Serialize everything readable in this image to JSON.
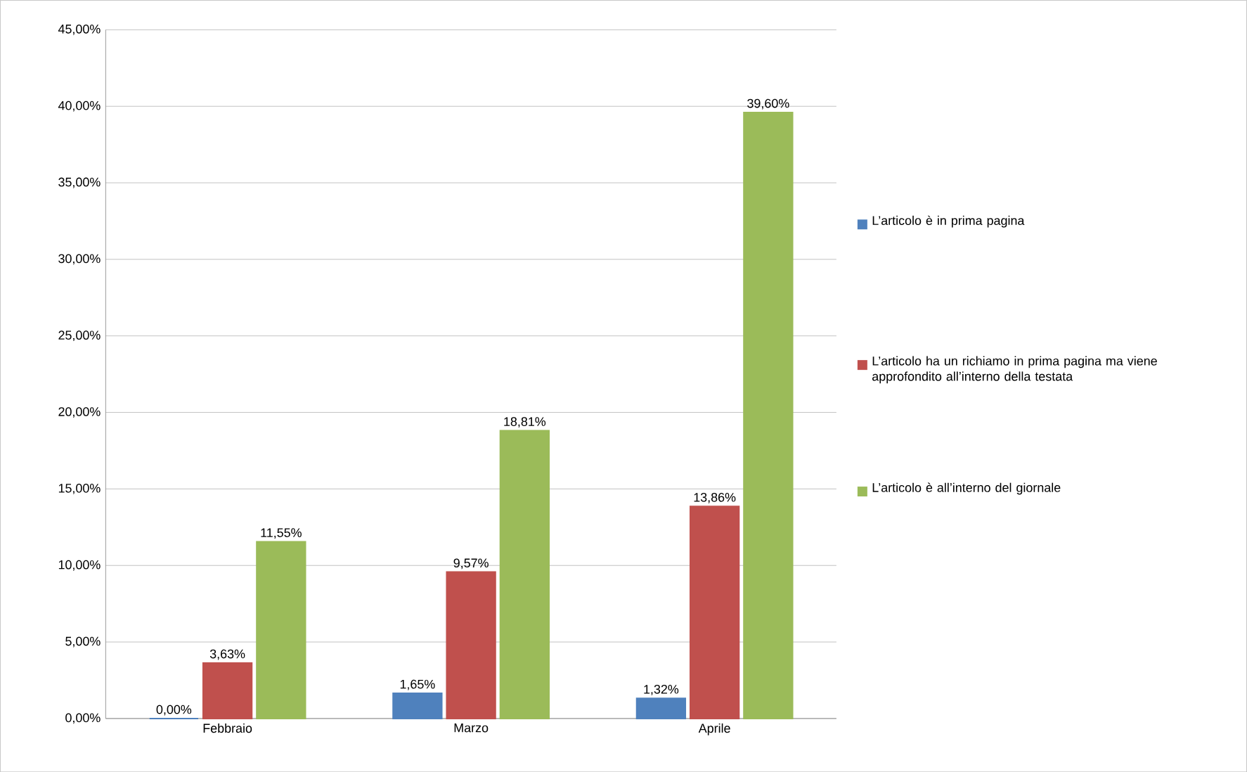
{
  "chart_data": {
    "type": "bar",
    "categories": [
      "Febbraio",
      "Marzo",
      "Aprile"
    ],
    "series": [
      {
        "name": "L’articolo è in prima pagina",
        "color": "#4f81bd",
        "values": [
          0.0,
          1.65,
          1.32
        ],
        "value_labels": [
          "0,00%",
          "1,65%",
          "1,32%"
        ]
      },
      {
        "name": "L’articolo ha un richiamo in prima pagina ma viene approfondito all’interno della testata",
        "color": "#c0504d",
        "values": [
          3.63,
          9.57,
          13.86
        ],
        "value_labels": [
          "3,63%",
          "9,57%",
          "13,86%"
        ]
      },
      {
        "name": "L’articolo è all’interno del giornale",
        "color": "#9bbb59",
        "values": [
          11.55,
          18.81,
          39.6
        ],
        "value_labels": [
          "11,55%",
          "18,81%",
          "39,60%"
        ]
      }
    ],
    "ylim": [
      0,
      45
    ],
    "yticks": [
      {
        "value": 0,
        "label": "0,00%"
      },
      {
        "value": 5,
        "label": "5,00%"
      },
      {
        "value": 10,
        "label": "10,00%"
      },
      {
        "value": 15,
        "label": "15,00%"
      },
      {
        "value": 20,
        "label": "20,00%"
      },
      {
        "value": 25,
        "label": "25,00%"
      },
      {
        "value": 30,
        "label": "30,00%"
      },
      {
        "value": 35,
        "label": "35,00%"
      },
      {
        "value": 40,
        "label": "40,00%"
      },
      {
        "value": 45,
        "label": "45,00%"
      }
    ],
    "grid": "y",
    "legend": "right"
  }
}
